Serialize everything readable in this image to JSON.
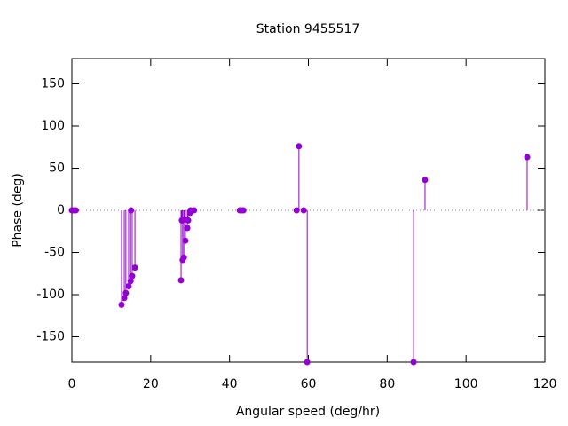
{
  "chart_data": {
    "type": "stem",
    "title": "Station 9455517",
    "x_label": "Angular speed (deg/hr)",
    "y_label": "Phase (deg)",
    "color": "#9400d3",
    "x": [
      0,
      0.5,
      1.0,
      12.6,
      13.3,
      13.7,
      14.4,
      14.9,
      15.0,
      15.3,
      16.0,
      27.7,
      27.9,
      28.1,
      28.4,
      28.6,
      28.8,
      29.3,
      29.5,
      30.0,
      30.1,
      31.0,
      42.6,
      43.0,
      43.5,
      57.0,
      57.6,
      58.8,
      59.7,
      86.7,
      89.6,
      115.5
    ],
    "values": [
      0,
      0,
      0,
      -112,
      -104,
      -98,
      -90,
      -84,
      0,
      -78,
      -68,
      -83,
      -12,
      -59,
      -56,
      -11,
      -36,
      -21,
      -12,
      -3,
      0,
      0,
      0,
      0,
      0,
      0,
      76,
      0,
      -180,
      -180,
      36,
      63
    ],
    "xlim": [
      0,
      120
    ],
    "ylim": [
      -180,
      180
    ],
    "xticks": [
      0,
      20,
      40,
      60,
      80,
      100,
      120
    ],
    "yticks": [
      -150,
      -100,
      -50,
      0,
      50,
      100,
      150
    ],
    "zero_line": true
  }
}
